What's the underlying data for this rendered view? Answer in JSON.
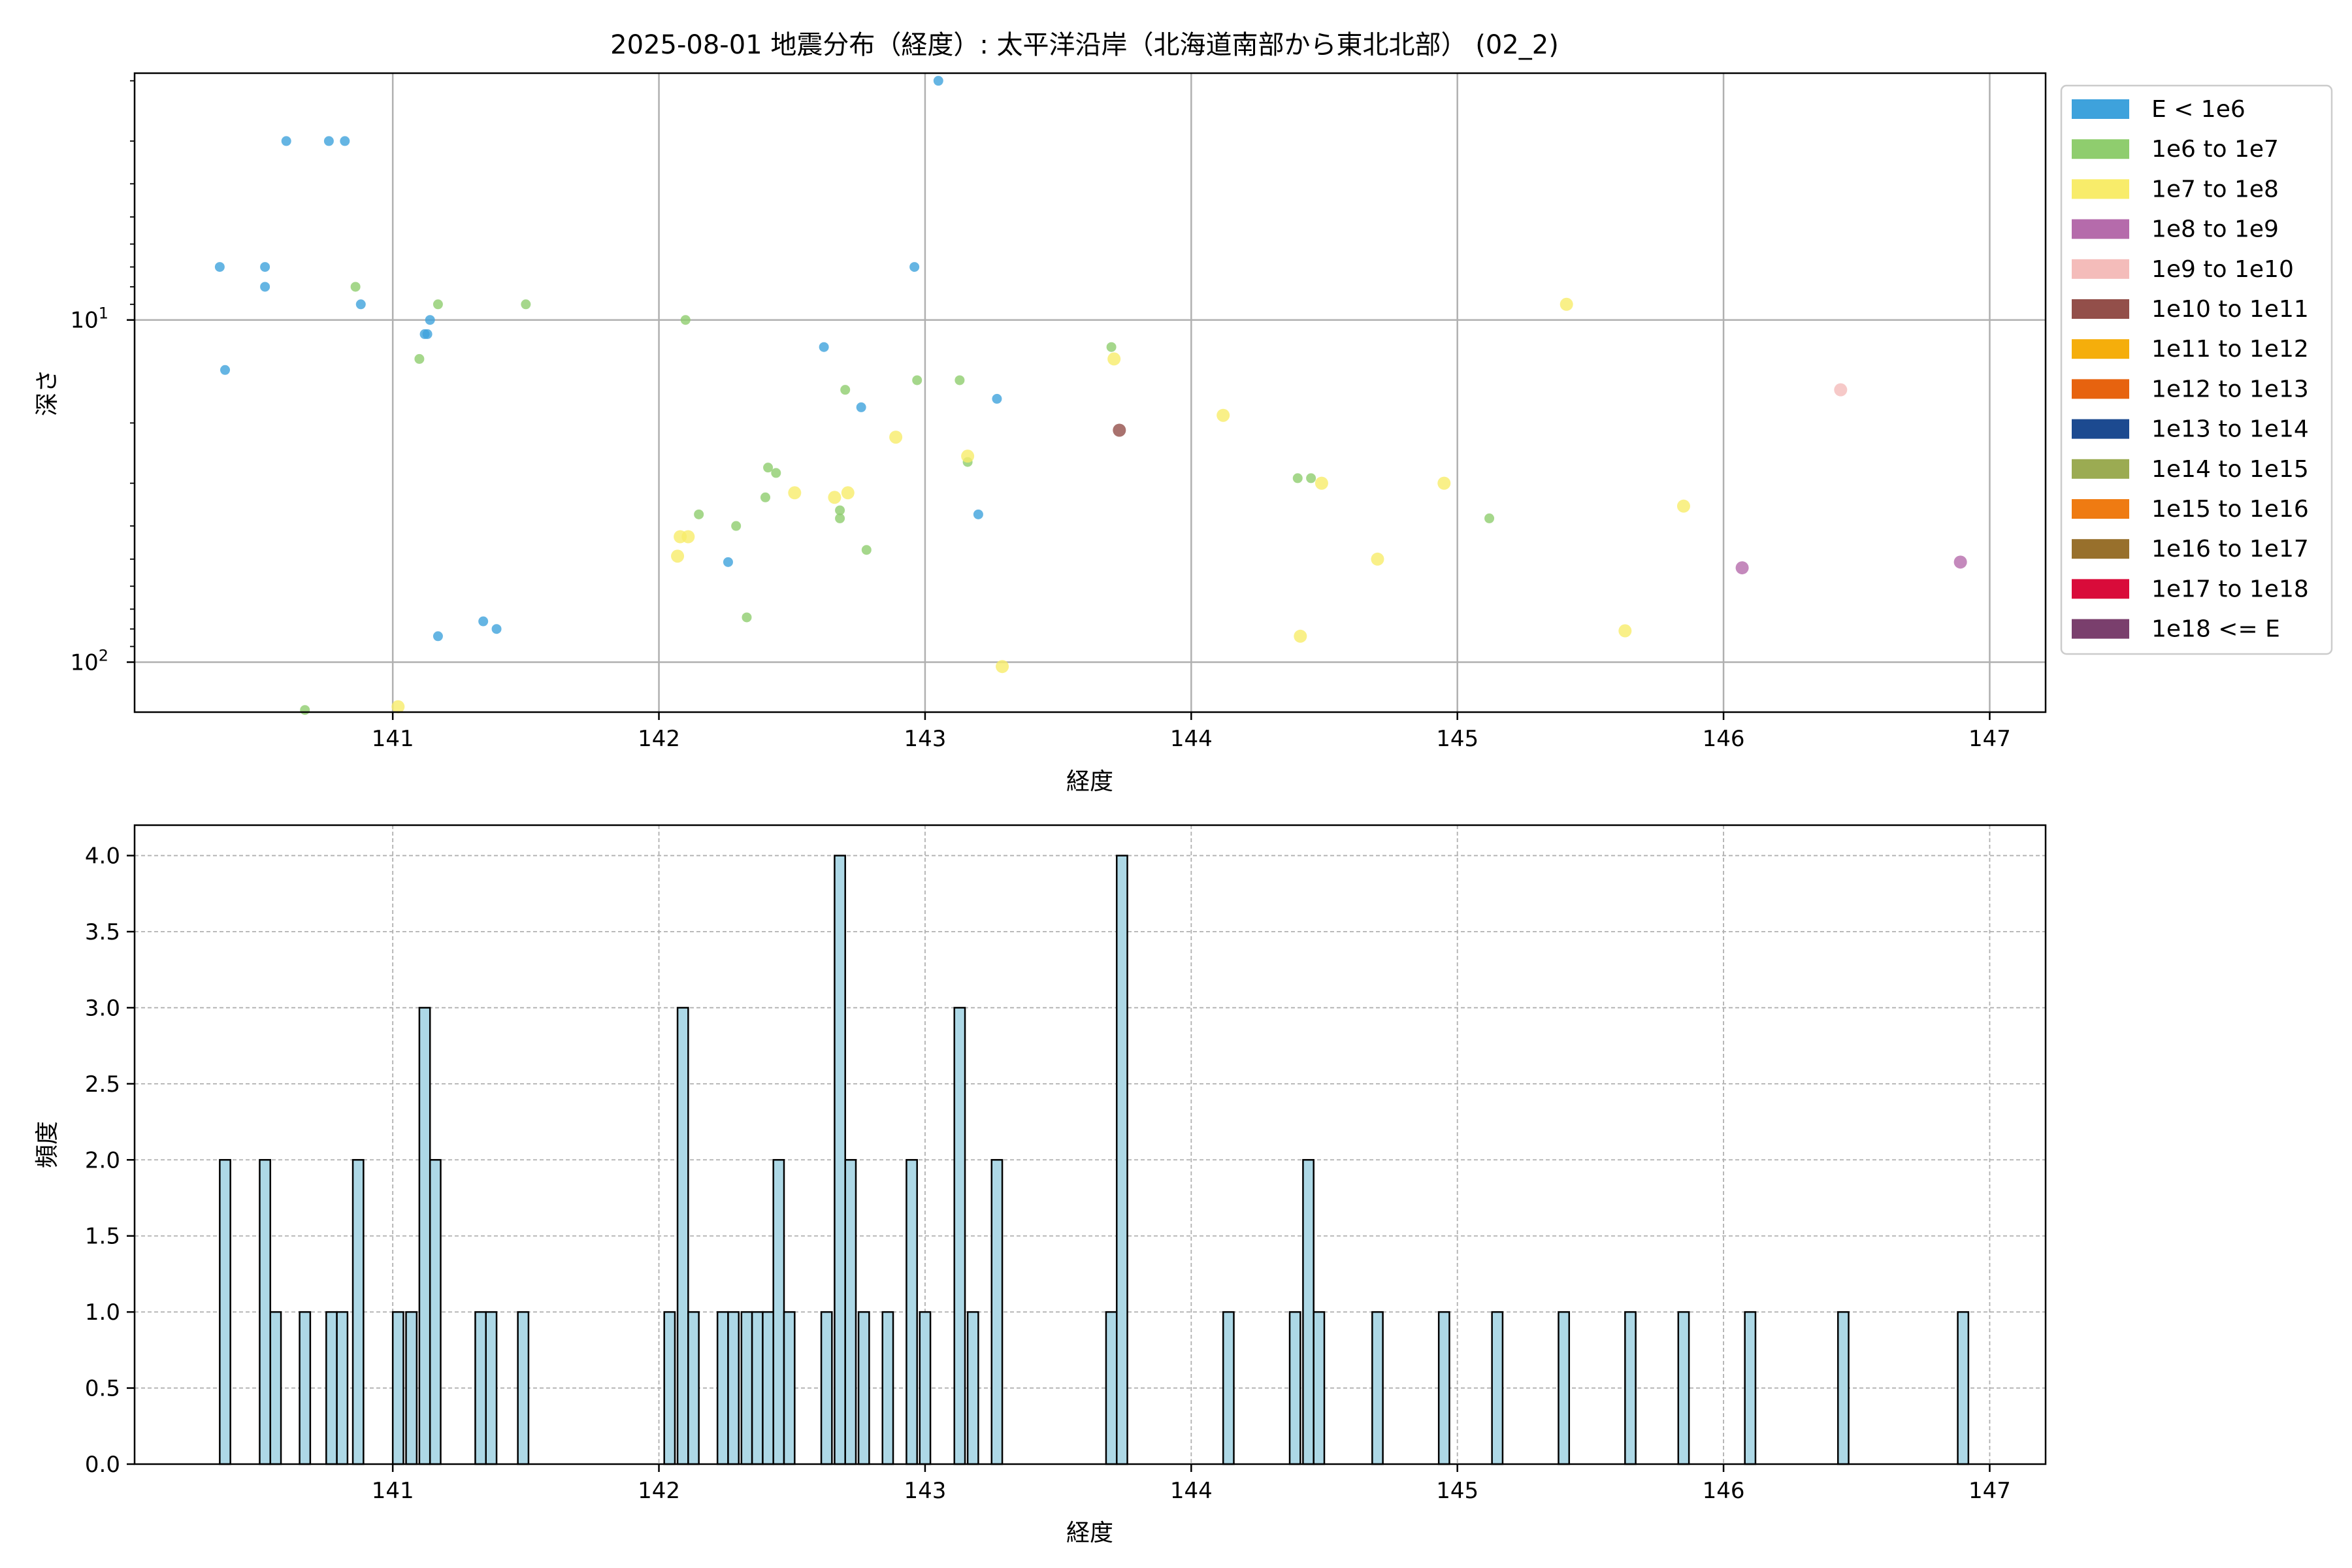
{
  "figure": {
    "title": "2025-08-01 地震分布（経度）: 太平洋沿岸（北海道南部から東北北部） (02_2)"
  },
  "chart_data": [
    {
      "type": "scatter",
      "xlabel": "経度",
      "ylabel": "深さ",
      "xlim": [
        140.03,
        147.21
      ],
      "ylim": [
        140,
        1.9
      ],
      "yscale": "log",
      "yaxis_inverted": true,
      "grid": true,
      "legend_position": "outside-right",
      "x_ticks": [
        "141",
        "142",
        "143",
        "144",
        "145",
        "146",
        "147"
      ],
      "y_ticks": [
        {
          "value": 10,
          "base": "10",
          "exp": "1"
        },
        {
          "value": 100,
          "base": "10",
          "exp": "2"
        }
      ],
      "series": [
        {
          "name": "E < 1e6",
          "color": "#3ea2dc",
          "points": [
            [
              140.35,
              7
            ],
            [
              140.37,
              14
            ],
            [
              140.52,
              7
            ],
            [
              140.52,
              8
            ],
            [
              140.6,
              3
            ],
            [
              140.76,
              3
            ],
            [
              140.82,
              3
            ],
            [
              140.88,
              9
            ],
            [
              141.12,
              11
            ],
            [
              141.13,
              11
            ],
            [
              141.14,
              10
            ],
            [
              141.17,
              84
            ],
            [
              141.34,
              76
            ],
            [
              141.39,
              80
            ],
            [
              142.26,
              51
            ],
            [
              142.62,
              12
            ],
            [
              142.76,
              18
            ],
            [
              142.96,
              7
            ],
            [
              143.05,
              2
            ],
            [
              143.2,
              37
            ],
            [
              143.27,
              17
            ]
          ]
        },
        {
          "name": "1e6 to 1e7",
          "color": "#8fcd6e",
          "points": [
            [
              140.67,
              138
            ],
            [
              140.86,
              8
            ],
            [
              141.1,
              13
            ],
            [
              141.17,
              9
            ],
            [
              141.5,
              9
            ],
            [
              142.1,
              10
            ],
            [
              142.15,
              37
            ],
            [
              142.29,
              40
            ],
            [
              142.33,
              74
            ],
            [
              142.4,
              33
            ],
            [
              142.41,
              27
            ],
            [
              142.44,
              28
            ],
            [
              142.68,
              36
            ],
            [
              142.68,
              38
            ],
            [
              142.7,
              16
            ],
            [
              142.78,
              47
            ],
            [
              142.97,
              15
            ],
            [
              143.13,
              15
            ],
            [
              143.16,
              26
            ],
            [
              143.7,
              12
            ],
            [
              144.4,
              29
            ],
            [
              144.45,
              29
            ],
            [
              145.12,
              38
            ]
          ]
        },
        {
          "name": "1e7 to 1e8",
          "color": "#f8ec6a",
          "points": [
            [
              141.02,
              135
            ],
            [
              142.07,
              49
            ],
            [
              142.08,
              43
            ],
            [
              142.11,
              43
            ],
            [
              142.51,
              32
            ],
            [
              142.66,
              33
            ],
            [
              142.71,
              32
            ],
            [
              142.89,
              22
            ],
            [
              143.16,
              25
            ],
            [
              143.29,
              103
            ],
            [
              143.71,
              13
            ],
            [
              144.12,
              19
            ],
            [
              144.41,
              84
            ],
            [
              144.49,
              30
            ],
            [
              144.7,
              50
            ],
            [
              144.95,
              30
            ],
            [
              145.41,
              9
            ],
            [
              145.63,
              81
            ],
            [
              145.85,
              35
            ]
          ]
        },
        {
          "name": "1e8 to 1e9",
          "color": "#b56bab",
          "points": [
            [
              146.07,
              53
            ],
            [
              146.89,
              51
            ]
          ]
        },
        {
          "name": "1e9 to 1e10",
          "color": "#f4bcba",
          "points": [
            [
              146.44,
              16
            ]
          ]
        },
        {
          "name": "1e10 to 1e11",
          "color": "#934f4a",
          "points": [
            [
              143.73,
              21
            ]
          ]
        },
        {
          "name": "1e11 to 1e12",
          "color": "#f5ae0b",
          "points": []
        },
        {
          "name": "1e12 to 1e13",
          "color": "#e7630f",
          "points": []
        },
        {
          "name": "1e13 to 1e14",
          "color": "#1c4a90",
          "points": []
        },
        {
          "name": "1e14 to 1e15",
          "color": "#9bab52",
          "points": []
        },
        {
          "name": "1e15 to 1e16",
          "color": "#ef7b12",
          "points": []
        },
        {
          "name": "1e16 to 1e17",
          "color": "#98702c",
          "points": []
        },
        {
          "name": "1e17 to 1e18",
          "color": "#d90b3a",
          "points": []
        },
        {
          "name": "1e18 <= E",
          "color": "#7a3f6d",
          "points": []
        }
      ]
    },
    {
      "type": "bar",
      "xlabel": "経度",
      "ylabel": "頻度",
      "xlim": [
        140.03,
        147.21
      ],
      "ylim": [
        0,
        4.2
      ],
      "grid": true,
      "bar_color": "#add8e6",
      "bin_width": 0.04,
      "x_ticks": [
        "141",
        "142",
        "143",
        "144",
        "145",
        "146",
        "147"
      ],
      "y_ticks": [
        "0.0",
        "0.5",
        "1.0",
        "1.5",
        "2.0",
        "2.5",
        "3.0",
        "3.5",
        "4.0"
      ],
      "bins": [
        [
          140.35,
          2
        ],
        [
          140.5,
          2
        ],
        [
          140.54,
          1
        ],
        [
          140.65,
          1
        ],
        [
          140.75,
          1
        ],
        [
          140.79,
          1
        ],
        [
          140.85,
          2
        ],
        [
          141.0,
          1
        ],
        [
          141.05,
          1
        ],
        [
          141.1,
          3
        ],
        [
          141.14,
          2
        ],
        [
          141.31,
          1
        ],
        [
          141.35,
          1
        ],
        [
          141.47,
          1
        ],
        [
          142.02,
          1
        ],
        [
          142.07,
          3
        ],
        [
          142.11,
          1
        ],
        [
          142.22,
          1
        ],
        [
          142.26,
          1
        ],
        [
          142.31,
          1
        ],
        [
          142.35,
          1
        ],
        [
          142.39,
          1
        ],
        [
          142.43,
          2
        ],
        [
          142.47,
          1
        ],
        [
          142.61,
          1
        ],
        [
          142.66,
          4
        ],
        [
          142.7,
          2
        ],
        [
          142.75,
          1
        ],
        [
          142.84,
          1
        ],
        [
          142.93,
          2
        ],
        [
          142.98,
          1
        ],
        [
          143.11,
          3
        ],
        [
          143.16,
          1
        ],
        [
          143.25,
          2
        ],
        [
          143.68,
          1
        ],
        [
          143.72,
          4
        ],
        [
          144.12,
          1
        ],
        [
          144.37,
          1
        ],
        [
          144.42,
          2
        ],
        [
          144.46,
          1
        ],
        [
          144.68,
          1
        ],
        [
          144.93,
          1
        ],
        [
          145.13,
          1
        ],
        [
          145.38,
          1
        ],
        [
          145.63,
          1
        ],
        [
          145.83,
          1
        ],
        [
          146.08,
          1
        ],
        [
          146.43,
          1
        ],
        [
          146.88,
          1
        ]
      ]
    }
  ]
}
